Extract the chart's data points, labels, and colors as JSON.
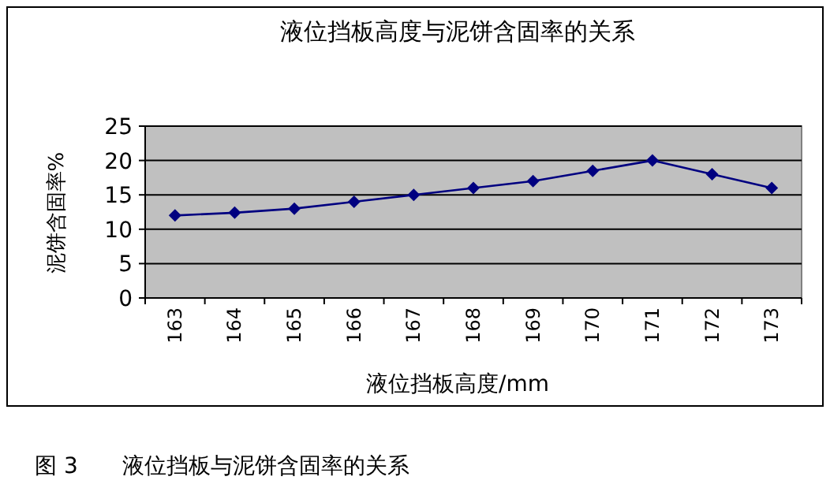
{
  "chart_data": {
    "type": "line",
    "title": "液位挡板高度与泥饼含固率的关系",
    "xlabel": "液位挡板高度/mm",
    "ylabel": "泥饼含固率%",
    "categories": [
      "163",
      "164",
      "165",
      "166",
      "167",
      "168",
      "169",
      "170",
      "171",
      "172",
      "173"
    ],
    "series": [
      {
        "color": "#000080",
        "values": [
          12,
          12.4,
          13,
          14,
          15,
          16,
          17,
          18.5,
          20,
          18,
          16
        ]
      }
    ],
    "ylim": [
      0,
      25
    ],
    "yticks": [
      0,
      5,
      10,
      15,
      20,
      25
    ],
    "grid": "y",
    "marker": "diamond",
    "line_style": "solid",
    "annotations": [
      "图 3　　液位挡板与泥饼含固率的关系"
    ]
  }
}
